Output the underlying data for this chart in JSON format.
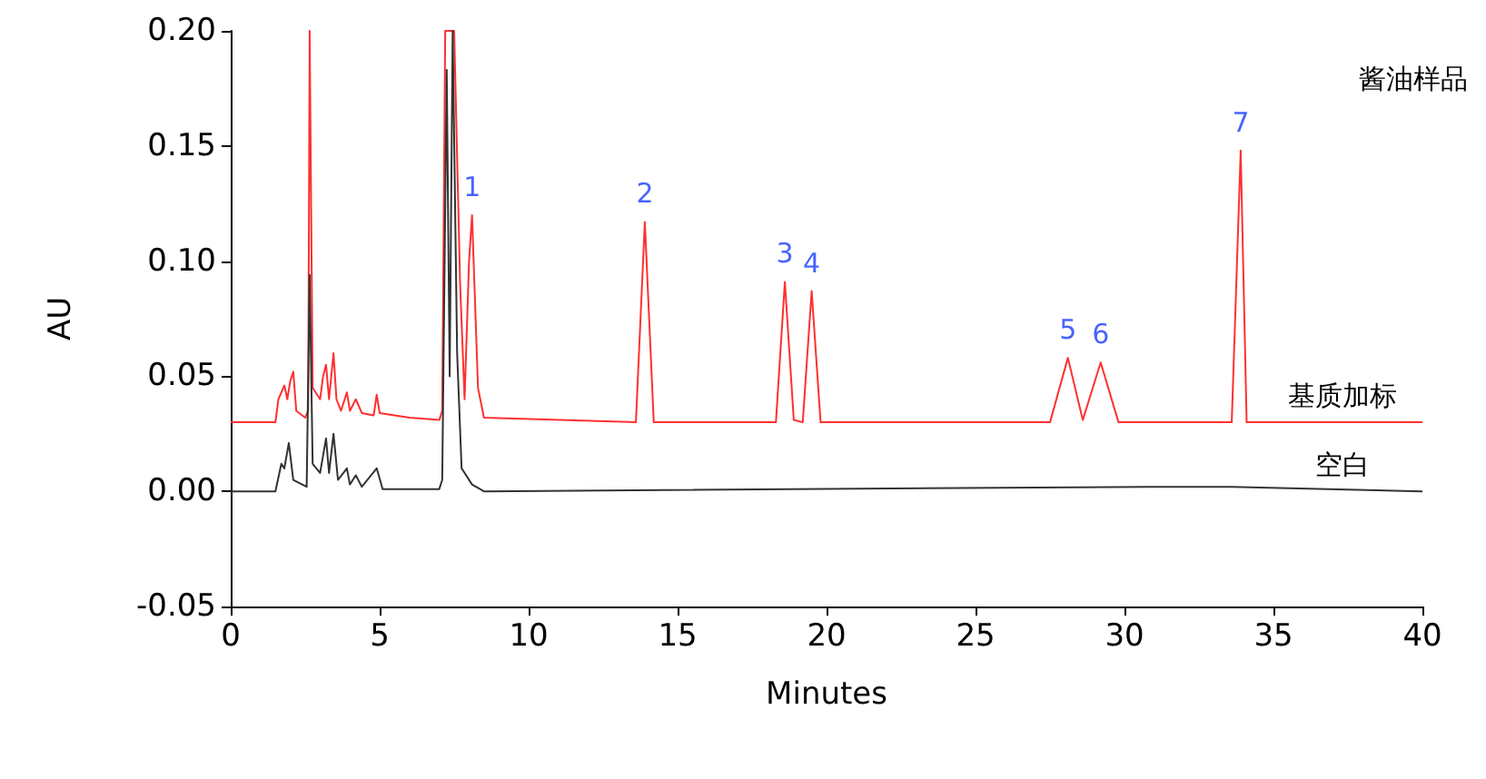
{
  "chart_data": {
    "type": "line",
    "xlabel": "Minutes",
    "ylabel": "AU",
    "xlim": [
      0,
      40
    ],
    "xticks": [
      0,
      5,
      10,
      15,
      20,
      25,
      30,
      35,
      40
    ],
    "ylim": [
      -0.05,
      0.2
    ],
    "yticks": [
      {
        "value": -0.05,
        "label": "-0.05"
      },
      {
        "value": 0,
        "label": "0.00"
      },
      {
        "value": 0.05,
        "label": "0.05"
      },
      {
        "value": 0.1,
        "label": "0.10"
      },
      {
        "value": 0.15,
        "label": "0.15"
      },
      {
        "value": 0.2,
        "label": "0.20"
      }
    ],
    "grid": false,
    "legend": false,
    "marker": "none",
    "line_style": "solid",
    "series": [
      {
        "name": "基质加标",
        "color": "#ff3030",
        "x": [
          0,
          1.5,
          1.6,
          1.8,
          1.9,
          2.0,
          2.1,
          2.2,
          2.5,
          2.6,
          2.65,
          2.75,
          3.0,
          3.1,
          3.2,
          3.3,
          3.45,
          3.55,
          3.7,
          3.9,
          4.0,
          4.2,
          4.4,
          4.8,
          4.9,
          5.0,
          6.0,
          7.0,
          7.1,
          7.2,
          7.35,
          7.5,
          7.7,
          7.85,
          8.0,
          8.1,
          8.3,
          8.5,
          13.6,
          13.9,
          14.2,
          18.3,
          18.6,
          18.9,
          19.2,
          19.5,
          19.8,
          27.5,
          28.1,
          28.6,
          29.2,
          29.8,
          33.6,
          33.9,
          34.1,
          40
        ],
        "values": [
          0.03,
          0.03,
          0.04,
          0.046,
          0.04,
          0.048,
          0.052,
          0.035,
          0.032,
          0.035,
          0.2,
          0.045,
          0.04,
          0.05,
          0.055,
          0.04,
          0.06,
          0.04,
          0.035,
          0.043,
          0.035,
          0.04,
          0.034,
          0.033,
          0.042,
          0.034,
          0.032,
          0.031,
          0.035,
          0.2,
          null,
          0.2,
          0.09,
          0.04,
          0.1,
          0.12,
          0.045,
          0.032,
          0.03,
          0.117,
          0.03,
          0.03,
          0.091,
          0.031,
          0.03,
          0.087,
          0.03,
          0.03,
          0.058,
          0.031,
          0.056,
          0.03,
          0.03,
          0.148,
          0.03,
          0.03
        ]
      },
      {
        "name": "空白",
        "color": "#333333",
        "x": [
          0,
          1.5,
          1.7,
          1.8,
          1.95,
          2.1,
          2.55,
          2.65,
          2.75,
          3.0,
          3.2,
          3.3,
          3.45,
          3.6,
          3.9,
          4.0,
          4.2,
          4.4,
          4.9,
          5.1,
          7.0,
          7.1,
          7.25,
          7.35,
          7.45,
          7.6,
          7.75,
          8.1,
          8.5,
          30.8,
          33.6,
          40
        ],
        "values": [
          0,
          0,
          0.012,
          0.01,
          0.021,
          0.005,
          0.002,
          0.094,
          0.012,
          0.008,
          0.023,
          0.008,
          0.025,
          0.005,
          0.01,
          0.003,
          0.007,
          0.002,
          0.01,
          0.001,
          0.001,
          0.005,
          0.183,
          0.05,
          0.2,
          0.06,
          0.01,
          0.003,
          0,
          0.002,
          0.002,
          0
        ]
      }
    ],
    "annotations": [
      {
        "text": "1",
        "x": 8.1,
        "y": 0.12
      },
      {
        "text": "2",
        "x": 13.9,
        "y": 0.117
      },
      {
        "text": "3",
        "x": 18.6,
        "y": 0.091
      },
      {
        "text": "4",
        "x": 19.5,
        "y": 0.087
      },
      {
        "text": "5",
        "x": 28.1,
        "y": 0.058
      },
      {
        "text": "6",
        "x": 29.2,
        "y": 0.056
      },
      {
        "text": "7",
        "x": 33.9,
        "y": 0.148
      },
      "酱油样品"
    ]
  }
}
